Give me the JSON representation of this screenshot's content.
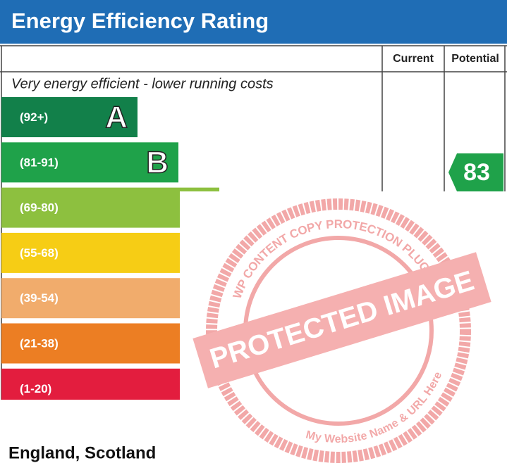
{
  "header": {
    "title": "Energy Efficiency Rating"
  },
  "columns": [
    "Current",
    "Potential"
  ],
  "top_note": "Very energy efficient - lower running costs",
  "bands": [
    {
      "range": "(92+)",
      "letter": "A",
      "color": "#12804a"
    },
    {
      "range": "(81-91)",
      "letter": "B",
      "color": "#1fa24a"
    },
    {
      "range": "(69-80)",
      "color": "#8dc03f"
    },
    {
      "range": "(55-68)",
      "color": "#f6cd15"
    },
    {
      "range": "(39-54)",
      "color": "#f1ac6c"
    },
    {
      "range": "(21-38)",
      "color": "#ec7e23"
    },
    {
      "range": "(1-20)",
      "color": "#e31d3e"
    }
  ],
  "potential": {
    "value": 83,
    "color": "#1fa24a"
  },
  "footer": "England, Scotland",
  "watermark": {
    "arc_text": "WP CONTENT COPY PROTECTION PLUGIN",
    "banner": "PROTECTED IMAGE",
    "bottom_text": "My Website Name & URL Here"
  }
}
